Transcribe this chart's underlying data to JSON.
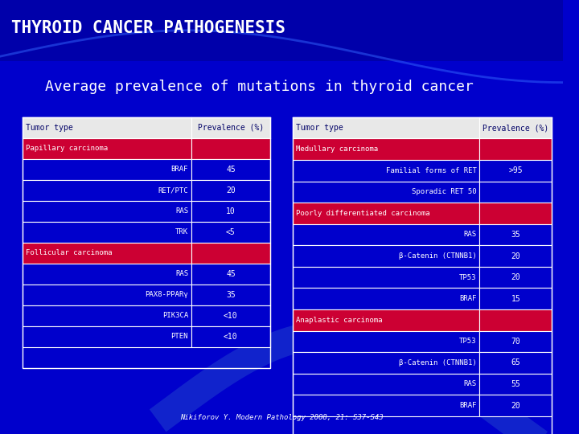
{
  "title": "THYROID CANCER PATHOGENESIS",
  "subtitle": "Average prevalence of mutations in thyroid cancer",
  "citation": "Nikiforov Y. Modern Pathology 2008, 21: S37-S43",
  "bg_color": "#0000CC",
  "header_bg": "#1a1aff",
  "table_bg_blue": "#0000CC",
  "table_bg_red": "#CC0033",
  "table_border": "#ffffff",
  "text_white": "#ffffff",
  "text_blue": "#0000CC",
  "left_table": {
    "headers": [
      "Tumor type",
      "Prevalence (%)"
    ],
    "rows": [
      {
        "label": "Papillary carcinoma",
        "value": "",
        "is_header": true
      },
      {
        "label": "BRAF",
        "value": "45",
        "is_header": false
      },
      {
        "label": "RET/PTC",
        "value": "20",
        "is_header": false
      },
      {
        "label": "RAS",
        "value": "10",
        "is_header": false
      },
      {
        "label": "TRK",
        "value": "<5",
        "is_header": false
      },
      {
        "label": "Follicular carcinoma",
        "value": "",
        "is_header": true
      },
      {
        "label": "RAS",
        "value": "45",
        "is_header": false
      },
      {
        "label": "PAX8-PPARγ",
        "value": "35",
        "is_header": false
      },
      {
        "label": "PIK3CA",
        "value": "<10",
        "is_header": false
      },
      {
        "label": "PTEN",
        "value": "<10",
        "is_header": false
      }
    ]
  },
  "right_table": {
    "headers": [
      "Tumor type",
      "Prevalence (%)"
    ],
    "rows": [
      {
        "label": "Medullary carcinoma",
        "value": "",
        "is_header": true
      },
      {
        "label": "Familial forms of RET",
        "value": ">95",
        "is_header": false
      },
      {
        "label": "Sporadic RET 50",
        "value": "",
        "is_header": false
      },
      {
        "label": "Poorly differentiated carcinoma",
        "value": "",
        "is_header": true
      },
      {
        "label": "RAS",
        "value": "35",
        "is_header": false
      },
      {
        "label": "β-Catenin (CTNNB1)",
        "value": "20",
        "is_header": false
      },
      {
        "label": "TP53",
        "value": "20",
        "is_header": false
      },
      {
        "label": "BRAF",
        "value": "15",
        "is_header": false
      },
      {
        "label": "Anaplastic carcinoma",
        "value": "",
        "is_header": true
      },
      {
        "label": "TP53",
        "value": "70",
        "is_header": false
      },
      {
        "label": "β-Catenin (CTNNB1)",
        "value": "65",
        "is_header": false
      },
      {
        "label": "RAS",
        "value": "55",
        "is_header": false
      },
      {
        "label": "BRAF",
        "value": "20",
        "is_header": false
      }
    ]
  }
}
